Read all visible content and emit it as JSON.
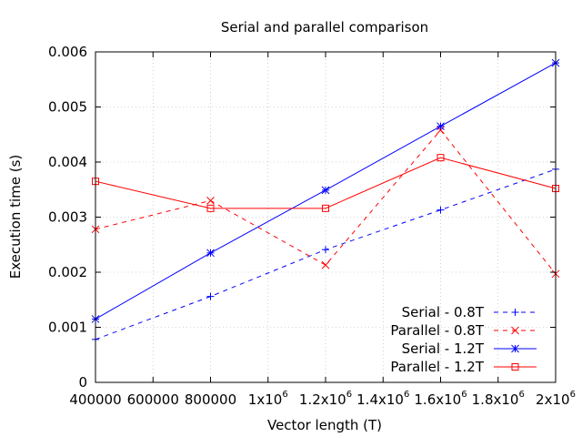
{
  "chart_data": {
    "type": "line",
    "title": "Serial and parallel comparison",
    "xlabel": "Vector length (T)",
    "ylabel": "Execution time (s)",
    "x": [
      400000,
      800000,
      1200000,
      1600000,
      2000000
    ],
    "xlim": [
      400000,
      2000000
    ],
    "ylim": [
      0,
      0.006
    ],
    "x_ticks": [
      {
        "value": 400000,
        "label": "400000"
      },
      {
        "value": 600000,
        "label": "600000"
      },
      {
        "value": 800000,
        "label": "800000"
      },
      {
        "value": 1000000,
        "label": "1x10",
        "sup": "6"
      },
      {
        "value": 1200000,
        "label": "1.2x10",
        "sup": "6"
      },
      {
        "value": 1400000,
        "label": "1.4x10",
        "sup": "6"
      },
      {
        "value": 1600000,
        "label": "1.6x10",
        "sup": "6"
      },
      {
        "value": 1800000,
        "label": "1.8x10",
        "sup": "6"
      },
      {
        "value": 2000000,
        "label": "2x10",
        "sup": "6"
      }
    ],
    "y_ticks": [
      {
        "value": 0,
        "label": "0"
      },
      {
        "value": 0.001,
        "label": "0.001"
      },
      {
        "value": 0.002,
        "label": "0.002"
      },
      {
        "value": 0.003,
        "label": "0.003"
      },
      {
        "value": 0.004,
        "label": "0.004"
      },
      {
        "value": 0.005,
        "label": "0.005"
      },
      {
        "value": 0.006,
        "label": "0.006"
      }
    ],
    "grid": true,
    "legend_position": "bottom-right",
    "series": [
      {
        "name": "Serial - 0.8T",
        "color": "#0000ff",
        "dashed": true,
        "marker": "plus",
        "values": [
          0.00078,
          0.00156,
          0.00241,
          0.00313,
          0.00387
        ]
      },
      {
        "name": "Parallel - 0.8T",
        "color": "#ff0000",
        "dashed": true,
        "marker": "cross",
        "values": [
          0.00278,
          0.0033,
          0.00213,
          0.00458,
          0.00197
        ]
      },
      {
        "name": "Serial - 1.2T",
        "color": "#0000ff",
        "dashed": false,
        "marker": "star",
        "values": [
          0.00115,
          0.00235,
          0.00349,
          0.00465,
          0.0058
        ]
      },
      {
        "name": "Parallel - 1.2T",
        "color": "#ff0000",
        "dashed": false,
        "marker": "square",
        "values": [
          0.00365,
          0.00316,
          0.00316,
          0.00408,
          0.00352
        ]
      }
    ]
  }
}
